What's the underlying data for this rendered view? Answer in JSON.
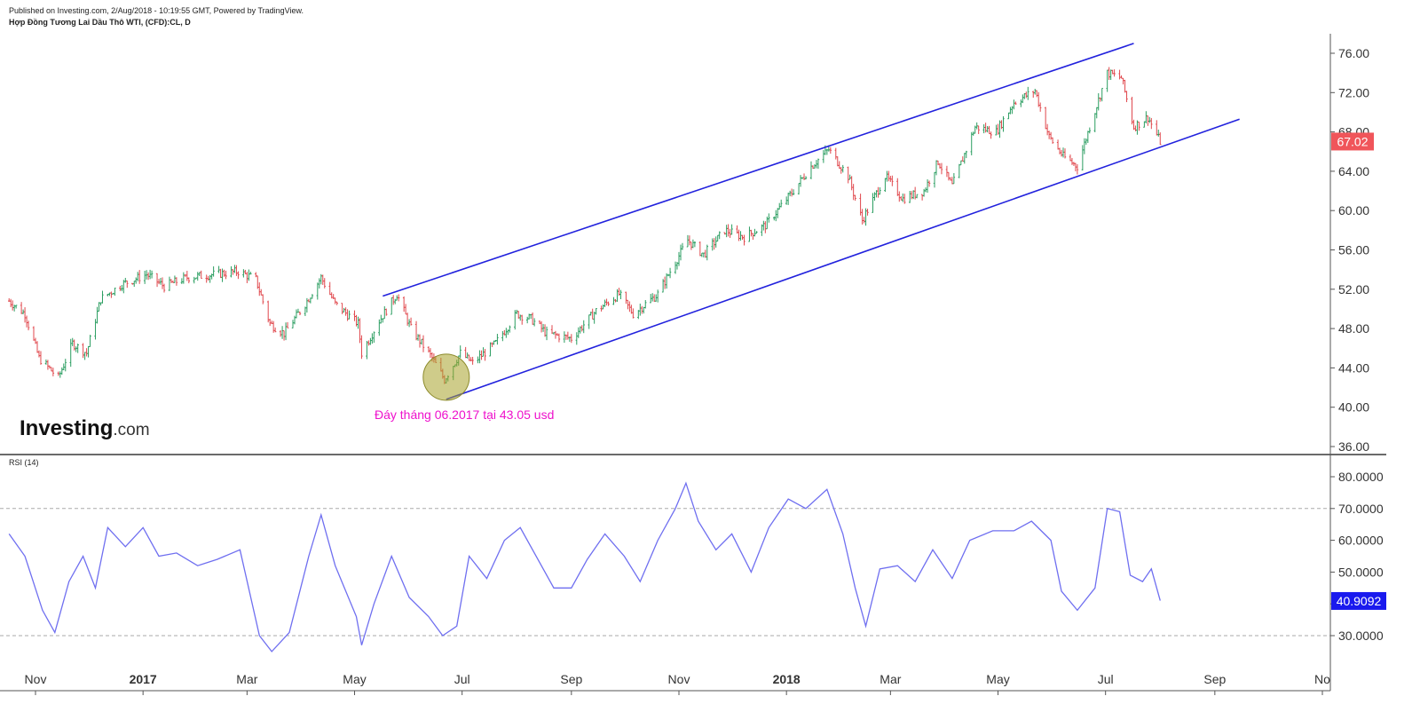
{
  "header": {
    "published": "Published on Investing.com, 2/Aug/2018 - 10:19:55 GMT, Powered by TradingView.",
    "symbol": "Hợp Đồng Tương Lai Dầu Thô WTI, (CFD):CL, D"
  },
  "logo": {
    "main": "Investing",
    "suffix": ".com"
  },
  "colors": {
    "up": "#2a9d60",
    "down": "#e0474c",
    "channel": "#2222dd",
    "rsi": "#6f6ff0",
    "annotation": "#ee11cc",
    "price_tag": "#f0555a",
    "rsi_tag": "#1a1aee"
  },
  "chart_data": [
    {
      "type": "candlestick",
      "title": "Hợp Đồng Tương Lai Dầu Thô WTI, (CFD):CL, D",
      "x_labels": [
        "Nov",
        "2017",
        "Mar",
        "May",
        "Jul",
        "Sep",
        "Nov",
        "2018",
        "Mar",
        "May",
        "Jul",
        "Sep",
        "No"
      ],
      "x_dates": [
        "2016-11-01",
        "2017-01-01",
        "2017-03-01",
        "2017-05-01",
        "2017-07-01",
        "2017-09-01",
        "2017-11-01",
        "2018-01-01",
        "2018-03-01",
        "2018-05-01",
        "2018-07-01",
        "2018-09-01",
        "2018-11-01"
      ],
      "yticks": [
        "76.00",
        "72.00",
        "68.00",
        "64.00",
        "60.00",
        "56.00",
        "52.00",
        "48.00",
        "44.00",
        "40.00",
        "36.00"
      ],
      "ylim": [
        35.5,
        77.5
      ],
      "last_price": "67.02",
      "price_path": [
        [
          "2016-10-17",
          50.8
        ],
        [
          "2016-10-26",
          49.5
        ],
        [
          "2016-11-03",
          45.0
        ],
        [
          "2016-11-14",
          43.0
        ],
        [
          "2016-11-22",
          46.5
        ],
        [
          "2016-11-30",
          45.5
        ],
        [
          "2016-12-08",
          51.0
        ],
        [
          "2016-12-20",
          52.5
        ],
        [
          "2017-01-03",
          53.5
        ],
        [
          "2017-01-13",
          52.3
        ],
        [
          "2017-01-26",
          53.2
        ],
        [
          "2017-02-10",
          53.5
        ],
        [
          "2017-02-24",
          53.8
        ],
        [
          "2017-03-06",
          53.0
        ],
        [
          "2017-03-14",
          48.5
        ],
        [
          "2017-03-22",
          47.5
        ],
        [
          "2017-04-03",
          50.5
        ],
        [
          "2017-04-12",
          53.2
        ],
        [
          "2017-04-20",
          50.5
        ],
        [
          "2017-05-03",
          48.5
        ],
        [
          "2017-05-05",
          45.5
        ],
        [
          "2017-05-15",
          48.8
        ],
        [
          "2017-05-25",
          51.5
        ],
        [
          "2017-06-02",
          48.0
        ],
        [
          "2017-06-14",
          45.0
        ],
        [
          "2017-06-21",
          42.8
        ],
        [
          "2017-06-30",
          45.5
        ],
        [
          "2017-07-07",
          44.5
        ],
        [
          "2017-07-20",
          46.5
        ],
        [
          "2017-08-01",
          49.5
        ],
        [
          "2017-08-09",
          49.0
        ],
        [
          "2017-08-18",
          47.5
        ],
        [
          "2017-09-01",
          47.0
        ],
        [
          "2017-09-15",
          49.8
        ],
        [
          "2017-09-28",
          51.5
        ],
        [
          "2017-10-06",
          49.5
        ],
        [
          "2017-10-20",
          51.5
        ],
        [
          "2017-10-27",
          53.8
        ],
        [
          "2017-11-06",
          57.0
        ],
        [
          "2017-11-15",
          55.5
        ],
        [
          "2017-11-27",
          58.0
        ],
        [
          "2017-12-08",
          57.3
        ],
        [
          "2017-12-20",
          58.5
        ],
        [
          "2018-01-04",
          61.8
        ],
        [
          "2018-01-15",
          64.5
        ],
        [
          "2018-01-25",
          66.2
        ],
        [
          "2018-02-05",
          63.5
        ],
        [
          "2018-02-13",
          59.0
        ],
        [
          "2018-02-26",
          63.5
        ],
        [
          "2018-03-08",
          61.2
        ],
        [
          "2018-03-20",
          62.0
        ],
        [
          "2018-03-28",
          65.0
        ],
        [
          "2018-04-05",
          62.5
        ],
        [
          "2018-04-18",
          68.5
        ],
        [
          "2018-04-30",
          68.0
        ],
        [
          "2018-05-10",
          71.0
        ],
        [
          "2018-05-22",
          72.2
        ],
        [
          "2018-05-30",
          67.5
        ],
        [
          "2018-06-07",
          65.5
        ],
        [
          "2018-06-15",
          64.5
        ],
        [
          "2018-06-22",
          68.5
        ],
        [
          "2018-07-02",
          74.0
        ],
        [
          "2018-07-10",
          73.5
        ],
        [
          "2018-07-17",
          68.5
        ],
        [
          "2018-07-25",
          69.5
        ],
        [
          "2018-08-01",
          67.0
        ]
      ],
      "channel_lines": [
        [
          [
            "2017-05-17",
            51.3
          ],
          [
            "2018-07-17",
            77.0
          ]
        ],
        [
          [
            "2017-06-22",
            40.8
          ],
          [
            "2018-09-15",
            69.3
          ]
        ]
      ],
      "highlight": {
        "date": "2017-06-22",
        "price": 43.05
      },
      "annotation": "Đáy tháng 06.2017 tại 43.05 usd"
    },
    {
      "type": "line",
      "title": "RSI (14)",
      "yticks": [
        "80.0000",
        "70.0000",
        "60.0000",
        "50.0000",
        "40.0000",
        "30.0000"
      ],
      "ylim": [
        22,
        83
      ],
      "levels": [
        70,
        30
      ],
      "last_value": "40.9092",
      "series": [
        {
          "name": "RSI (14)",
          "points": [
            [
              "2016-10-17",
              62
            ],
            [
              "2016-10-26",
              55
            ],
            [
              "2016-11-05",
              38
            ],
            [
              "2016-11-12",
              31
            ],
            [
              "2016-11-20",
              47
            ],
            [
              "2016-11-28",
              55
            ],
            [
              "2016-12-05",
              45
            ],
            [
              "2016-12-12",
              64
            ],
            [
              "2016-12-22",
              58
            ],
            [
              "2017-01-01",
              64
            ],
            [
              "2017-01-10",
              55
            ],
            [
              "2017-01-20",
              56
            ],
            [
              "2017-02-01",
              52
            ],
            [
              "2017-02-12",
              54
            ],
            [
              "2017-02-25",
              57
            ],
            [
              "2017-03-08",
              30
            ],
            [
              "2017-03-15",
              25
            ],
            [
              "2017-03-25",
              31
            ],
            [
              "2017-04-05",
              55
            ],
            [
              "2017-04-12",
              68
            ],
            [
              "2017-04-20",
              52
            ],
            [
              "2017-05-02",
              36
            ],
            [
              "2017-05-05",
              27
            ],
            [
              "2017-05-12",
              40
            ],
            [
              "2017-05-22",
              55
            ],
            [
              "2017-06-01",
              42
            ],
            [
              "2017-06-12",
              36
            ],
            [
              "2017-06-20",
              30
            ],
            [
              "2017-06-28",
              33
            ],
            [
              "2017-07-05",
              55
            ],
            [
              "2017-07-15",
              48
            ],
            [
              "2017-07-25",
              60
            ],
            [
              "2017-08-03",
              64
            ],
            [
              "2017-08-10",
              57
            ],
            [
              "2017-08-22",
              45
            ],
            [
              "2017-09-01",
              45
            ],
            [
              "2017-09-10",
              54
            ],
            [
              "2017-09-20",
              62
            ],
            [
              "2017-10-01",
              55
            ],
            [
              "2017-10-10",
              47
            ],
            [
              "2017-10-20",
              60
            ],
            [
              "2017-10-30",
              70
            ],
            [
              "2017-11-05",
              78
            ],
            [
              "2017-11-12",
              66
            ],
            [
              "2017-11-22",
              57
            ],
            [
              "2017-12-01",
              62
            ],
            [
              "2017-12-12",
              50
            ],
            [
              "2017-12-22",
              64
            ],
            [
              "2018-01-02",
              73
            ],
            [
              "2018-01-12",
              70
            ],
            [
              "2018-01-24",
              76
            ],
            [
              "2018-02-02",
              62
            ],
            [
              "2018-02-09",
              45
            ],
            [
              "2018-02-15",
              33
            ],
            [
              "2018-02-23",
              51
            ],
            [
              "2018-03-05",
              52
            ],
            [
              "2018-03-15",
              47
            ],
            [
              "2018-03-25",
              57
            ],
            [
              "2018-04-05",
              48
            ],
            [
              "2018-04-15",
              60
            ],
            [
              "2018-04-28",
              63
            ],
            [
              "2018-05-10",
              63
            ],
            [
              "2018-05-20",
              66
            ],
            [
              "2018-05-31",
              60
            ],
            [
              "2018-06-06",
              44
            ],
            [
              "2018-06-15",
              38
            ],
            [
              "2018-06-25",
              45
            ],
            [
              "2018-07-02",
              70
            ],
            [
              "2018-07-09",
              69
            ],
            [
              "2018-07-15",
              49
            ],
            [
              "2018-07-22",
              47
            ],
            [
              "2018-07-27",
              51
            ],
            [
              "2018-08-01",
              41
            ]
          ]
        }
      ]
    }
  ]
}
